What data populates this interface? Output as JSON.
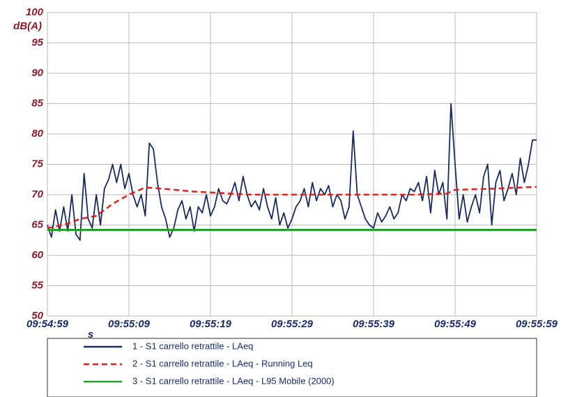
{
  "chart_data": {
    "type": "line",
    "ylabel": "dB(A)",
    "xlabel": "s",
    "xlim": [
      0,
      60
    ],
    "xticks": [
      {
        "value": 0,
        "label": "09:54:59"
      },
      {
        "value": 10,
        "label": "09:55:09"
      },
      {
        "value": 20,
        "label": "09:55:19"
      },
      {
        "value": 30,
        "label": "09:55:29"
      },
      {
        "value": 40,
        "label": "09:55:39"
      },
      {
        "value": 50,
        "label": "09:55:49"
      },
      {
        "value": 60,
        "label": "09:55:59"
      }
    ],
    "ylim": [
      50,
      100
    ],
    "yticks": [
      50,
      55,
      60,
      65,
      70,
      75,
      80,
      85,
      90,
      95,
      100
    ],
    "grid": true,
    "legend": "bottom",
    "series": [
      {
        "name": "1 - S1 carrello retrattile - LAeq",
        "color": "#1a2a5a",
        "dash": false,
        "x": [
          0,
          0.5,
          1,
          1.5,
          2,
          2.5,
          3,
          3.5,
          4,
          4.5,
          5,
          5.5,
          6,
          6.5,
          7,
          7.5,
          8,
          8.5,
          9,
          9.5,
          10,
          10.5,
          11,
          11.5,
          12,
          12.5,
          13,
          13.5,
          14,
          14.5,
          15,
          15.5,
          16,
          16.5,
          17,
          17.5,
          18,
          18.5,
          19,
          19.5,
          20,
          20.5,
          21,
          21.5,
          22,
          22.5,
          23,
          23.5,
          24,
          24.5,
          25,
          25.5,
          26,
          26.5,
          27,
          27.5,
          28,
          28.5,
          29,
          29.5,
          30,
          30.5,
          31,
          31.5,
          32,
          32.5,
          33,
          33.5,
          34,
          34.5,
          35,
          35.5,
          36,
          36.5,
          37,
          37.5,
          38,
          38.5,
          39,
          39.5,
          40,
          40.5,
          41,
          41.5,
          42,
          42.5,
          43,
          43.5,
          44,
          44.5,
          45,
          45.5,
          46,
          46.5,
          47,
          47.5,
          48,
          48.5,
          49,
          49.5,
          50,
          50.5,
          51,
          51.5,
          52,
          52.5,
          53,
          53.5,
          54,
          54.5,
          55,
          55.5,
          56,
          56.5,
          57,
          57.5,
          58,
          58.5,
          59,
          59.5,
          60
        ],
        "values": [
          65,
          63,
          67.5,
          64,
          68,
          64,
          70,
          63.5,
          62.5,
          73.5,
          66,
          64.5,
          70,
          65,
          71,
          72.5,
          75,
          72,
          75,
          71,
          73.5,
          70,
          68,
          70,
          66.5,
          78.5,
          77.5,
          72,
          68,
          66,
          63,
          64.5,
          67.5,
          69,
          66,
          68,
          64,
          68,
          67,
          70,
          66.5,
          68,
          71,
          69,
          68.5,
          70,
          72,
          69,
          73,
          70,
          68,
          69,
          67.5,
          71,
          68,
          66,
          69.5,
          65,
          67,
          64.5,
          66,
          68,
          69,
          71,
          68,
          72,
          69,
          71,
          70,
          71.5,
          68,
          70,
          69,
          66,
          68,
          80.5,
          70,
          68,
          66,
          65,
          64.5,
          67,
          65.5,
          66.5,
          68,
          66,
          67,
          70,
          69,
          71,
          70.5,
          72,
          69,
          73,
          67,
          74,
          70,
          72,
          66,
          85,
          75,
          66,
          70,
          65.5,
          68,
          70,
          67,
          73,
          75,
          65,
          72,
          74,
          69,
          71,
          73.5,
          70,
          76,
          72,
          75,
          79,
          79
        ]
      },
      {
        "name": "2 - S1 carrello retrattile - LAeq - Running Leq",
        "color": "#e02020",
        "dash": true,
        "x": [
          0,
          2,
          4,
          6,
          8,
          10,
          12,
          14,
          18,
          25,
          35,
          45,
          49,
          50,
          55,
          60
        ],
        "values": [
          64.5,
          65,
          66,
          66.5,
          68.5,
          70,
          71.2,
          71,
          70.5,
          70,
          70,
          70,
          70.2,
          70.8,
          71,
          71.3
        ]
      },
      {
        "name": "3 - S1 carrello retrattile - LAeq - L95 Mobile (2000)",
        "color": "#22a02a",
        "dash": false,
        "x": [
          0,
          60
        ],
        "values": [
          64.2,
          64.2
        ]
      }
    ]
  }
}
